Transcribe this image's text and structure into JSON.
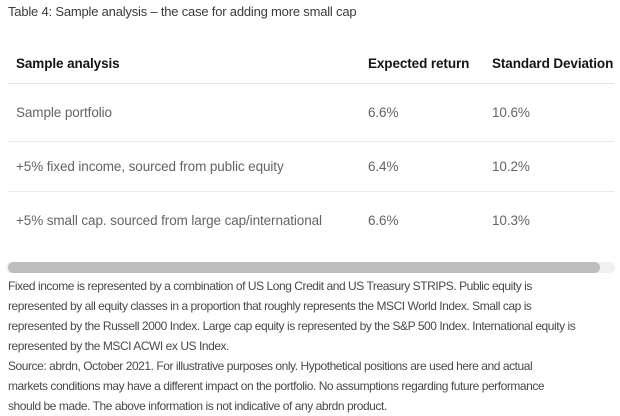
{
  "title": "Table 4: Sample analysis – the case for adding more small cap",
  "table": {
    "columns": [
      "Sample analysis",
      "Expected return",
      "Standard Deviation"
    ],
    "rows": [
      {
        "label": "Sample portfolio",
        "expected_return": "6.6%",
        "standard_deviation": "10.6%"
      },
      {
        "label": "+5% fixed income, sourced from public equity",
        "expected_return": "6.4%",
        "standard_deviation": "10.2%"
      },
      {
        "label": "+5% small cap. sourced from large cap/international",
        "expected_return": "6.6%",
        "standard_deviation": "10.3%"
      }
    ]
  },
  "chart_data": {
    "type": "table",
    "title": "Table 4: Sample analysis – the case for adding more small cap",
    "columns": [
      "Sample analysis",
      "Expected return",
      "Standard Deviation"
    ],
    "rows": [
      [
        "Sample portfolio",
        "6.6%",
        "10.6%"
      ],
      [
        "+5% fixed income, sourced from public equity",
        "6.4%",
        "10.2%"
      ],
      [
        "+5% small cap. sourced from large cap/international",
        "6.6%",
        "10.3%"
      ]
    ]
  },
  "footnotes": {
    "lines": [
      "Fixed income is represented by a combination of US Long Credit and US Treasury STRIPS. Public equity is",
      "represented by all equity classes in a proportion that roughly represents the MSCI World Index. Small cap is",
      "represented by the Russell 2000 Index. Large cap equity is represented by the S&P 500 Index. International equity is",
      "represented by the MSCI ACWI ex US Index.",
      "Source: abrdn, October 2021. For illustrative purposes only. Hypothetical positions are used here and actual",
      "markets conditions may have a different impact on the portfolio. No assumptions regarding future performance",
      "should be made. The above information is not indicative of any abrdn product."
    ]
  },
  "colors": {
    "background": "#ffffff",
    "title_text": "#3b3b3b",
    "header_text": "#141414",
    "body_text": "#646464",
    "footnote_text": "#4a4a4a",
    "separator": "#e7e7e7",
    "scrollbar_track": "#f0f0f0",
    "scrollbar_thumb": "#bdbdbd"
  }
}
